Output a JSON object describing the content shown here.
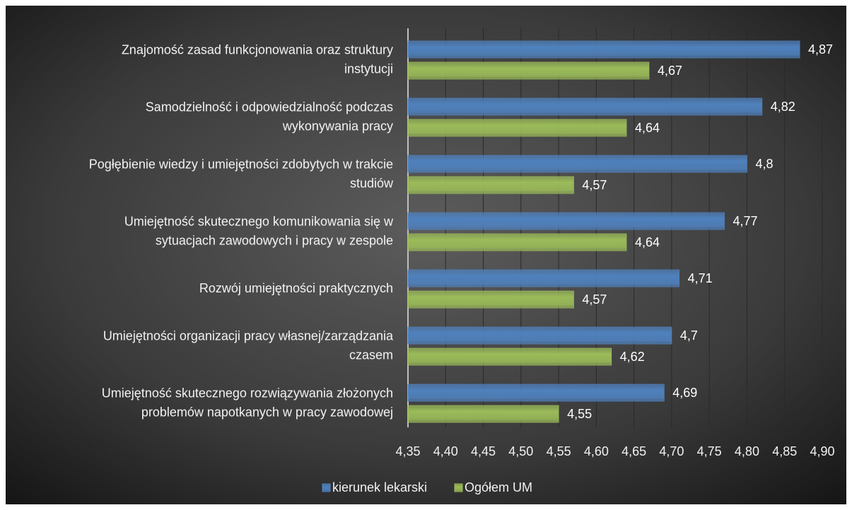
{
  "chart_data": {
    "type": "hbar",
    "categories": [
      [
        "Znajomość zasad funkcjonowania oraz struktury",
        "instytucji"
      ],
      [
        "Samodzielność i odpowiedzialność podczas",
        "wykonywania pracy"
      ],
      [
        "Pogłębienie wiedzy i umiejętności zdobytych w trakcie",
        "studiów"
      ],
      [
        "Umiejętność skutecznego komunikowania się w",
        "sytuacjach zawodowych i pracy w zespole"
      ],
      [
        "Rozwój umiejętności praktycznych"
      ],
      [
        "Umiejętności organizacji pracy własnej/zarządzania",
        "czasem"
      ],
      [
        "Umiejętność skutecznego rozwiązywania złożonych",
        "problemów napotkanych w pracy zawodowej"
      ]
    ],
    "series": [
      {
        "name": "kierunek lekarski",
        "color": "#4f81bd",
        "values": [
          4.87,
          4.82,
          4.8,
          4.77,
          4.71,
          4.7,
          4.69
        ],
        "value_labels": [
          "4,87",
          "4,82",
          "4,8",
          "4,77",
          "4,71",
          "4,7",
          "4,69"
        ]
      },
      {
        "name": "Ogółem UM",
        "color": "#9bbb59",
        "values": [
          4.67,
          4.64,
          4.57,
          4.64,
          4.57,
          4.62,
          4.55
        ],
        "value_labels": [
          "4,67",
          "4,64",
          "4,57",
          "4,64",
          "4,57",
          "4,62",
          "4,55"
        ]
      }
    ],
    "xlim": [
      4.35,
      4.9
    ],
    "xticks": [
      {
        "value": 4.35,
        "label": "4,35"
      },
      {
        "value": 4.4,
        "label": "4,40"
      },
      {
        "value": 4.45,
        "label": "4,45"
      },
      {
        "value": 4.5,
        "label": "4,50"
      },
      {
        "value": 4.55,
        "label": "4,55"
      },
      {
        "value": 4.6,
        "label": "4,60"
      },
      {
        "value": 4.65,
        "label": "4,65"
      },
      {
        "value": 4.7,
        "label": "4,70"
      },
      {
        "value": 4.75,
        "label": "4,75"
      },
      {
        "value": 4.8,
        "label": "4,80"
      },
      {
        "value": 4.85,
        "label": "4,85"
      },
      {
        "value": 4.9,
        "label": "4,90"
      }
    ],
    "grid": true,
    "legend": "bottom"
  }
}
